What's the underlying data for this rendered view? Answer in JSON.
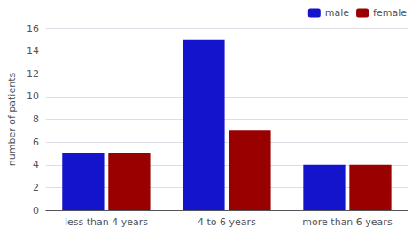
{
  "chart_data": {
    "type": "bar",
    "categories": [
      "less than 4 years",
      "4 to 6 years",
      "more than 6 years"
    ],
    "series": [
      {
        "name": "male",
        "color": "#1414CC",
        "values": [
          5,
          15,
          4
        ]
      },
      {
        "name": "female",
        "color": "#990000",
        "values": [
          5,
          7,
          4
        ]
      }
    ],
    "ylabel": "number of patients",
    "ylim": [
      0,
      16
    ],
    "yticks": [
      0,
      2,
      4,
      6,
      8,
      10,
      12,
      14,
      16
    ],
    "grid": true,
    "legend": "upper right"
  }
}
